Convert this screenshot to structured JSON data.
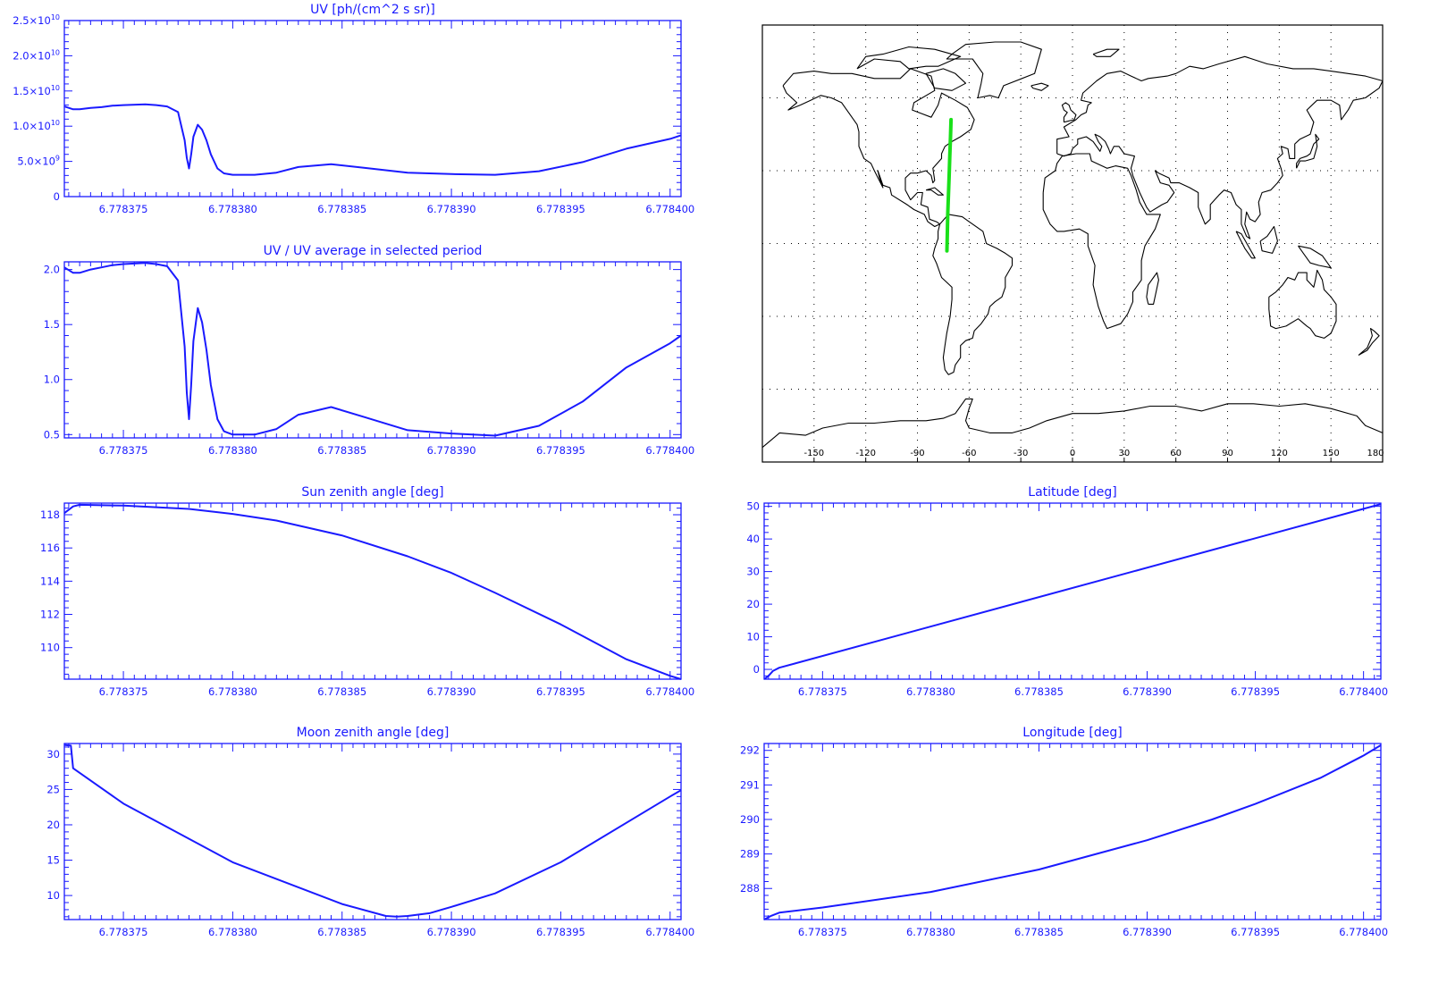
{
  "chart_data": [
    {
      "id": "uv",
      "type": "line",
      "title": "UV [ph/(cm^2 s sr)]",
      "x_ticks": [
        "6.778375",
        "6.778380",
        "6.778385",
        "6.778390",
        "6.778395",
        "6.778400"
      ],
      "x_tick_values": [
        6.778375,
        6.77838,
        6.778385,
        6.77839,
        6.778395,
        6.7784
      ],
      "xlim": [
        6.7783723,
        6.7784005
      ],
      "ylim": [
        0,
        25000000000.0
      ],
      "y_ticks": [
        {
          "v": 0,
          "m": "0",
          "e": ""
        },
        {
          "v": 5000000000.0,
          "m": "5.0×10",
          "e": "9"
        },
        {
          "v": 10000000000.0,
          "m": "1.0×10",
          "e": "10"
        },
        {
          "v": 15000000000.0,
          "m": "1.5×10",
          "e": "10"
        },
        {
          "v": 20000000000.0,
          "m": "2.0×10",
          "e": "10"
        },
        {
          "v": 25000000000.0,
          "m": "2.5×10",
          "e": "10"
        }
      ],
      "series": [
        {
          "x": [
            6.7783723,
            6.7783727,
            6.778373,
            6.7783735,
            6.778374,
            6.7783745,
            6.778375,
            6.778376,
            6.7783765,
            6.778377,
            6.7783775,
            6.7783778,
            6.7783779,
            6.778378,
            6.7783781,
            6.7783782,
            6.7783784,
            6.7783786,
            6.7783788,
            6.778379,
            6.7783793,
            6.7783796,
            6.77838,
            6.778381,
            6.778382,
            6.778383,
            6.7783845,
            6.778386,
            6.778388,
            6.77839,
            6.778392,
            6.778394,
            6.778396,
            6.778398,
            6.7784,
            6.7784005
          ],
          "y": [
            12800000000.0,
            12400000000.0,
            12400000000.0,
            12600000000.0,
            12700000000.0,
            12900000000.0,
            13000000000.0,
            13100000000.0,
            13000000000.0,
            12800000000.0,
            12000000000.0,
            8000000000.0,
            5500000000.0,
            4000000000.0,
            6000000000.0,
            8500000000.0,
            10200000000.0,
            9500000000.0,
            8000000000.0,
            6000000000.0,
            4000000000.0,
            3300000000.0,
            3100000000.0,
            3100000000.0,
            3400000000.0,
            4200000000.0,
            4600000000.0,
            4100000000.0,
            3400000000.0,
            3200000000.0,
            3100000000.0,
            3600000000.0,
            4900000000.0,
            6800000000.0,
            8200000000.0,
            8700000000.0
          ]
        }
      ]
    },
    {
      "id": "uvratio",
      "type": "line",
      "title": "UV / UV average in selected period",
      "x_ticks": [
        "6.778375",
        "6.778380",
        "6.778385",
        "6.778390",
        "6.778395",
        "6.778400"
      ],
      "x_tick_values": [
        6.778375,
        6.77838,
        6.778385,
        6.77839,
        6.778395,
        6.7784
      ],
      "xlim": [
        6.7783723,
        6.7784005
      ],
      "ylim": [
        0.47,
        2.07
      ],
      "y_ticks": [
        {
          "v": 0.5,
          "m": "0.5"
        },
        {
          "v": 1.0,
          "m": "1.0"
        },
        {
          "v": 1.5,
          "m": "1.5"
        },
        {
          "v": 2.0,
          "m": "2.0"
        }
      ],
      "series": [
        {
          "x": [
            6.7783723,
            6.7783727,
            6.778373,
            6.7783735,
            6.778374,
            6.7783745,
            6.778375,
            6.778376,
            6.7783765,
            6.778377,
            6.7783775,
            6.7783778,
            6.7783779,
            6.778378,
            6.7783781,
            6.7783782,
            6.7783784,
            6.7783786,
            6.7783788,
            6.778379,
            6.7783793,
            6.7783796,
            6.77838,
            6.778381,
            6.778382,
            6.778383,
            6.7783845,
            6.778386,
            6.778388,
            6.77839,
            6.778392,
            6.778394,
            6.778396,
            6.778398,
            6.7784,
            6.7784005
          ],
          "y": [
            2.02,
            1.97,
            1.97,
            2.0,
            2.02,
            2.04,
            2.05,
            2.06,
            2.05,
            2.03,
            1.9,
            1.3,
            0.88,
            0.64,
            0.95,
            1.35,
            1.65,
            1.52,
            1.27,
            0.95,
            0.64,
            0.53,
            0.5,
            0.5,
            0.55,
            0.68,
            0.75,
            0.66,
            0.54,
            0.51,
            0.49,
            0.58,
            0.8,
            1.11,
            1.33,
            1.4
          ]
        }
      ]
    },
    {
      "id": "sza",
      "type": "line",
      "title": "Sun zenith angle [deg]",
      "x_ticks": [
        "6.778375",
        "6.778380",
        "6.778385",
        "6.778390",
        "6.778395",
        "6.778400"
      ],
      "x_tick_values": [
        6.778375,
        6.77838,
        6.778385,
        6.77839,
        6.778395,
        6.7784
      ],
      "xlim": [
        6.7783723,
        6.7784005
      ],
      "ylim": [
        108.1,
        118.7
      ],
      "y_ticks": [
        {
          "v": 110,
          "m": "110"
        },
        {
          "v": 112,
          "m": "112"
        },
        {
          "v": 114,
          "m": "114"
        },
        {
          "v": 116,
          "m": "116"
        },
        {
          "v": 118,
          "m": "118"
        }
      ],
      "series": [
        {
          "x": [
            6.7783723,
            6.7783727,
            6.778373,
            6.778375,
            6.778378,
            6.77838,
            6.778382,
            6.778385,
            6.778388,
            6.77839,
            6.778392,
            6.778395,
            6.778398,
            6.7784,
            6.7784005
          ],
          "y": [
            118.1,
            118.5,
            118.6,
            118.55,
            118.35,
            118.05,
            117.65,
            116.75,
            115.5,
            114.5,
            113.3,
            111.4,
            109.3,
            108.3,
            108.1
          ]
        }
      ]
    },
    {
      "id": "mza",
      "type": "line",
      "title": "Moon zenith angle [deg]",
      "x_ticks": [
        "6.778375",
        "6.778380",
        "6.778385",
        "6.778390",
        "6.778395",
        "6.778400"
      ],
      "x_tick_values": [
        6.778375,
        6.77838,
        6.778385,
        6.77839,
        6.778395,
        6.7784
      ],
      "xlim": [
        6.7783723,
        6.7784005
      ],
      "ylim": [
        6.6,
        31.5
      ],
      "y_ticks": [
        {
          "v": 10,
          "m": "10"
        },
        {
          "v": 15,
          "m": "15"
        },
        {
          "v": 20,
          "m": "20"
        },
        {
          "v": 25,
          "m": "25"
        },
        {
          "v": 30,
          "m": "30"
        }
      ],
      "series": [
        {
          "x": [
            6.7783723,
            6.7783726,
            6.7783727,
            6.778375,
            6.77838,
            6.778385,
            6.778387,
            6.7783875,
            6.778388,
            6.778389,
            6.77839,
            6.778392,
            6.778395,
            6.7784,
            6.7784005
          ],
          "y": [
            31.3,
            31.2,
            28.0,
            23.0,
            14.7,
            8.8,
            7.1,
            7.0,
            7.1,
            7.5,
            8.4,
            10.3,
            14.7,
            24.0,
            24.9
          ]
        }
      ]
    },
    {
      "id": "lat",
      "type": "line",
      "title": "Latitude [deg]",
      "x_ticks": [
        "6.778375",
        "6.778380",
        "6.778385",
        "6.778390",
        "6.778395",
        "6.778400"
      ],
      "x_tick_values": [
        6.778375,
        6.77838,
        6.778385,
        6.77839,
        6.778395,
        6.7784
      ],
      "xlim": [
        6.7783723,
        6.7784008
      ],
      "ylim": [
        -3,
        51
      ],
      "y_ticks": [
        {
          "v": 0,
          "m": "0"
        },
        {
          "v": 10,
          "m": "10"
        },
        {
          "v": 20,
          "m": "20"
        },
        {
          "v": 30,
          "m": "30"
        },
        {
          "v": 40,
          "m": "40"
        },
        {
          "v": 50,
          "m": "50"
        }
      ],
      "series": [
        {
          "x": [
            6.7783723,
            6.7783725,
            6.7783727,
            6.778373,
            6.7784008
          ],
          "y": [
            -3,
            -2,
            -0.5,
            0.5,
            50.7
          ]
        }
      ]
    },
    {
      "id": "lon",
      "type": "line",
      "title": "Longitude [deg]",
      "x_ticks": [
        "6.778375",
        "6.778380",
        "6.778385",
        "6.778390",
        "6.778395",
        "6.778400"
      ],
      "x_tick_values": [
        6.778375,
        6.77838,
        6.778385,
        6.77839,
        6.778395,
        6.7784
      ],
      "xlim": [
        6.7783723,
        6.7784008
      ],
      "ylim": [
        287.1,
        292.2
      ],
      "y_ticks": [
        {
          "v": 288,
          "m": "288"
        },
        {
          "v": 289,
          "m": "289"
        },
        {
          "v": 290,
          "m": "290"
        },
        {
          "v": 291,
          "m": "291"
        },
        {
          "v": 292,
          "m": "292"
        }
      ],
      "series": [
        {
          "x": [
            6.7783723,
            6.7783726,
            6.778373,
            6.778375,
            6.77838,
            6.778385,
            6.77839,
            6.778393,
            6.778395,
            6.778398,
            6.7784,
            6.7784008
          ],
          "y": [
            287.1,
            287.2,
            287.3,
            287.45,
            287.9,
            288.55,
            289.4,
            290.0,
            290.45,
            291.2,
            291.85,
            292.15
          ]
        }
      ]
    }
  ],
  "map": {
    "lon_ticks": [
      "-150",
      "-120",
      "-90",
      "-60",
      "-30",
      "0",
      "30",
      "60",
      "90",
      "120",
      "150",
      "180"
    ],
    "lon_tick_values": [
      -150,
      -120,
      -90,
      -60,
      -30,
      0,
      30,
      60,
      90,
      120,
      150,
      180
    ],
    "lon_range": [
      -180,
      180
    ],
    "lat_range": [
      -90,
      90
    ],
    "grid_lat": [
      60,
      30,
      0,
      -30,
      -60
    ],
    "track": {
      "lon": [
        -72.9,
        -72.6,
        -72.4,
        -72.0,
        -71.6,
        -71.2,
        -70.8,
        -70.5
      ],
      "lat": [
        -3,
        5,
        12,
        20,
        28,
        36,
        44,
        51
      ]
    },
    "track_color": "#19e019",
    "accent_color": "#1a1aff"
  }
}
